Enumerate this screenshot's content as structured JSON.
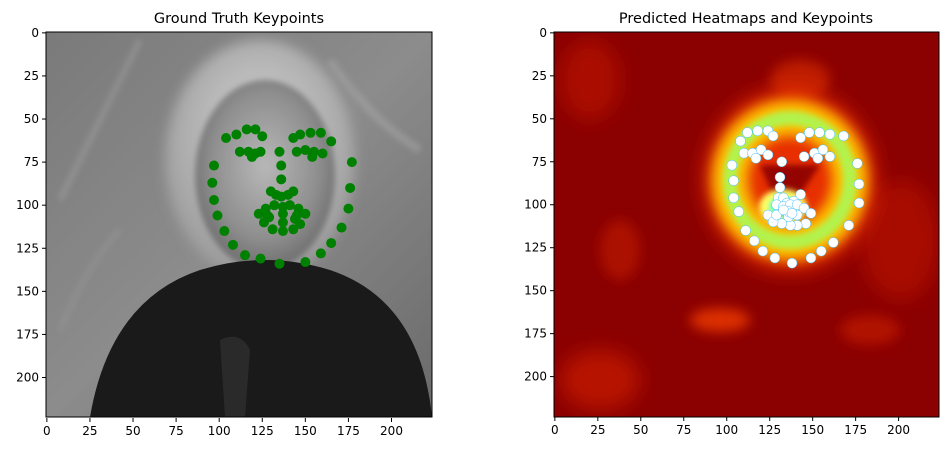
{
  "chart_data": [
    {
      "type": "scatter",
      "title": "Ground Truth Keypoints",
      "background": "grayscale-face-photo",
      "xlim": [
        0,
        224
      ],
      "ylim": [
        224,
        0
      ],
      "xticks": [
        0,
        25,
        50,
        75,
        100,
        125,
        150,
        175,
        200
      ],
      "yticks": [
        0,
        25,
        50,
        75,
        100,
        125,
        150,
        175,
        200
      ],
      "marker_color": "#008000",
      "points": [
        [
          97,
          77
        ],
        [
          96,
          87
        ],
        [
          97,
          97
        ],
        [
          99,
          106
        ],
        [
          103,
          115
        ],
        [
          108,
          123
        ],
        [
          115,
          129
        ],
        [
          124,
          131
        ],
        [
          135,
          134
        ],
        [
          150,
          133
        ],
        [
          159,
          128
        ],
        [
          165,
          122
        ],
        [
          171,
          113
        ],
        [
          175,
          102
        ],
        [
          176,
          90
        ],
        [
          177,
          75
        ],
        [
          104,
          61
        ],
        [
          110,
          59
        ],
        [
          116,
          56
        ],
        [
          121,
          56
        ],
        [
          125,
          60
        ],
        [
          143,
          61
        ],
        [
          147,
          59
        ],
        [
          153,
          58
        ],
        [
          159,
          58
        ],
        [
          165,
          63
        ],
        [
          135,
          69
        ],
        [
          136,
          77
        ],
        [
          136,
          85
        ],
        [
          130,
          92
        ],
        [
          133,
          94
        ],
        [
          136,
          95
        ],
        [
          140,
          94
        ],
        [
          143,
          92
        ],
        [
          112,
          69
        ],
        [
          117,
          69
        ],
        [
          121,
          70
        ],
        [
          124,
          69
        ],
        [
          119,
          72
        ],
        [
          145,
          69
        ],
        [
          150,
          68
        ],
        [
          155,
          69
        ],
        [
          160,
          70
        ],
        [
          154,
          72
        ],
        [
          123,
          105
        ],
        [
          127,
          102
        ],
        [
          132,
          100
        ],
        [
          137,
          101
        ],
        [
          141,
          100
        ],
        [
          146,
          102
        ],
        [
          150,
          105
        ],
        [
          147,
          111
        ],
        [
          143,
          114
        ],
        [
          137,
          115
        ],
        [
          131,
          114
        ],
        [
          126,
          110
        ],
        [
          128,
          106
        ],
        [
          137,
          105
        ],
        [
          145,
          106
        ],
        [
          137,
          110
        ],
        [
          129,
          107
        ],
        [
          144,
          108
        ]
      ]
    },
    {
      "type": "scatter",
      "title": "Predicted Heatmaps and Keypoints",
      "background": "jet-heatmap",
      "xlim": [
        0,
        224
      ],
      "ylim": [
        224,
        0
      ],
      "xticks": [
        0,
        25,
        50,
        75,
        100,
        125,
        150,
        175,
        200
      ],
      "yticks": [
        0,
        25,
        50,
        75,
        100,
        125,
        150,
        175,
        200
      ],
      "marker_color": "#ffffff",
      "points": [
        [
          103,
          77
        ],
        [
          104,
          86
        ],
        [
          104,
          96
        ],
        [
          107,
          104
        ],
        [
          111,
          115
        ],
        [
          116,
          121
        ],
        [
          121,
          127
        ],
        [
          128,
          131
        ],
        [
          138,
          134
        ],
        [
          149,
          131
        ],
        [
          155,
          127
        ],
        [
          162,
          122
        ],
        [
          171,
          112
        ],
        [
          177,
          99
        ],
        [
          177,
          88
        ],
        [
          176,
          76
        ],
        [
          108,
          63
        ],
        [
          112,
          58
        ],
        [
          118,
          57
        ],
        [
          124,
          57
        ],
        [
          127,
          60
        ],
        [
          143,
          61
        ],
        [
          148,
          58
        ],
        [
          154,
          58
        ],
        [
          160,
          59
        ],
        [
          168,
          60
        ],
        [
          132,
          75
        ],
        [
          131,
          84
        ],
        [
          131,
          90
        ],
        [
          130,
          96
        ],
        [
          133,
          96
        ],
        [
          135,
          99
        ],
        [
          139,
          98
        ],
        [
          143,
          94
        ],
        [
          110,
          70
        ],
        [
          115,
          70
        ],
        [
          120,
          68
        ],
        [
          124,
          71
        ],
        [
          117,
          73
        ],
        [
          145,
          72
        ],
        [
          151,
          70
        ],
        [
          156,
          68
        ],
        [
          160,
          72
        ],
        [
          153,
          73
        ],
        [
          124,
          106
        ],
        [
          129,
          100
        ],
        [
          133,
          101
        ],
        [
          137,
          100
        ],
        [
          141,
          100
        ],
        [
          145,
          102
        ],
        [
          149,
          105
        ],
        [
          146,
          111
        ],
        [
          141,
          112
        ],
        [
          137,
          112
        ],
        [
          132,
          111
        ],
        [
          127,
          110
        ],
        [
          129,
          106
        ],
        [
          136,
          107
        ],
        [
          141,
          106
        ],
        [
          136,
          104
        ],
        [
          133,
          103
        ],
        [
          138,
          105
        ]
      ]
    }
  ]
}
